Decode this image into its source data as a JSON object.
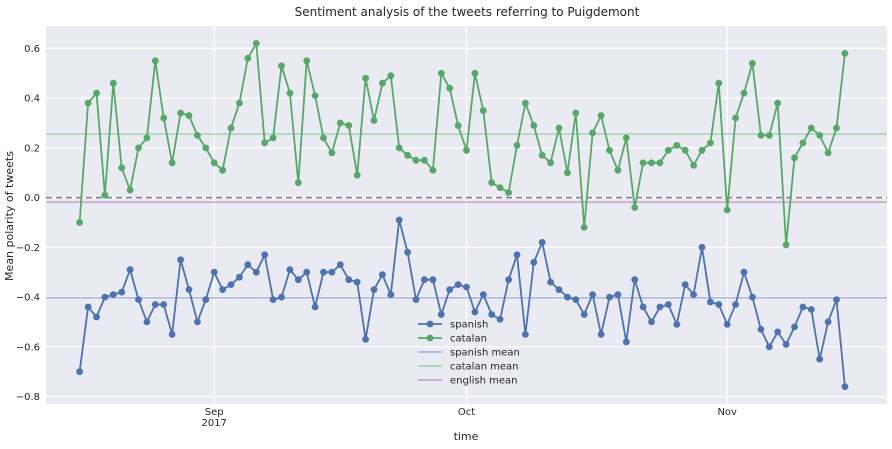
{
  "chart_data": {
    "type": "line",
    "title": "Sentiment analysis of the tweets referring to Puigdemont",
    "xlabel": "time",
    "ylabel": "Mean polarity of tweets",
    "ylim": [
      -0.83,
      0.69
    ],
    "y_ticks": [
      -0.8,
      -0.6,
      -0.4,
      -0.2,
      0.0,
      0.2,
      0.4,
      0.6
    ],
    "y_tick_labels": [
      "−0.8",
      "−0.6",
      "−0.4",
      "−0.2",
      "0.0",
      "0.2",
      "0.4",
      "0.6"
    ],
    "x_start_date": "2017-08-14",
    "x_tick_labels": [
      {
        "date": "2017-09-01",
        "label": "Sep",
        "sublabel": "2017"
      },
      {
        "date": "2017-10-01",
        "label": "Oct",
        "sublabel": ""
      },
      {
        "date": "2017-11-01",
        "label": "Nov",
        "sublabel": ""
      }
    ],
    "xlim": [
      "2017-08-12",
      "2017-11-20"
    ],
    "grid": true,
    "zero_line": {
      "y": 0.0,
      "style": "dashed",
      "color": "#808080"
    },
    "legend_position": "lower-center",
    "series": [
      {
        "name": "spanish",
        "color": "#4c72b0",
        "marker": "circle",
        "start": "2017-08-16",
        "values": [
          -0.7,
          -0.44,
          -0.48,
          -0.4,
          -0.39,
          -0.38,
          -0.29,
          -0.41,
          -0.5,
          -0.43,
          -0.43,
          -0.55,
          -0.25,
          -0.37,
          -0.5,
          -0.41,
          -0.3,
          -0.37,
          -0.35,
          -0.32,
          -0.27,
          -0.3,
          -0.23,
          -0.41,
          -0.4,
          -0.29,
          -0.33,
          -0.3,
          -0.44,
          -0.3,
          -0.3,
          -0.27,
          -0.33,
          -0.34,
          -0.57,
          -0.37,
          -0.31,
          -0.39,
          -0.09,
          -0.22,
          -0.41,
          -0.33,
          -0.33,
          -0.47,
          -0.37,
          -0.35,
          -0.36,
          -0.46,
          -0.39,
          -0.47,
          -0.49,
          -0.33,
          -0.23,
          -0.55,
          -0.26,
          -0.18,
          -0.34,
          -0.37,
          -0.4,
          -0.41,
          -0.47,
          -0.39,
          -0.55,
          -0.4,
          -0.39,
          -0.58,
          -0.33,
          -0.44,
          -0.5,
          -0.44,
          -0.43,
          -0.51,
          -0.35,
          -0.39,
          -0.2,
          -0.42,
          -0.43,
          -0.51,
          -0.43,
          -0.3,
          -0.4,
          -0.53,
          -0.6,
          -0.54,
          -0.59,
          -0.52,
          -0.44,
          -0.45,
          -0.65,
          -0.5,
          -0.41,
          -0.76
        ]
      },
      {
        "name": "catalan",
        "color": "#55a868",
        "marker": "circle",
        "start": "2017-08-16",
        "values": [
          -0.1,
          0.38,
          0.42,
          0.01,
          0.46,
          0.12,
          0.03,
          0.2,
          0.24,
          0.55,
          0.32,
          0.14,
          0.34,
          0.33,
          0.25,
          0.2,
          0.14,
          0.11,
          0.28,
          0.38,
          0.56,
          0.62,
          0.22,
          0.24,
          0.53,
          0.42,
          0.06,
          0.55,
          0.41,
          0.24,
          0.18,
          0.3,
          0.29,
          0.09,
          0.48,
          0.31,
          0.46,
          0.49,
          0.2,
          0.17,
          0.15,
          0.15,
          0.11,
          0.5,
          0.44,
          0.29,
          0.19,
          0.5,
          0.35,
          0.06,
          0.04,
          0.02,
          0.21,
          0.38,
          0.29,
          0.17,
          0.14,
          0.28,
          0.1,
          0.34,
          -0.12,
          0.26,
          0.33,
          0.19,
          0.11,
          0.24,
          -0.04,
          0.14,
          0.14,
          0.14,
          0.19,
          0.21,
          0.19,
          0.13,
          0.19,
          0.22,
          0.46,
          -0.05,
          0.32,
          0.42,
          0.54,
          0.25,
          0.25,
          0.38,
          -0.19,
          0.16,
          0.22,
          0.28,
          0.25,
          0.18,
          0.28,
          0.58
        ]
      },
      {
        "name": "spanish mean",
        "color": "#a8b4ef",
        "value": -0.403
      },
      {
        "name": "catalan mean",
        "color": "#a6d3b1",
        "value": 0.255
      },
      {
        "name": "english mean",
        "color": "#c8a2d2",
        "value": -0.018
      }
    ]
  }
}
